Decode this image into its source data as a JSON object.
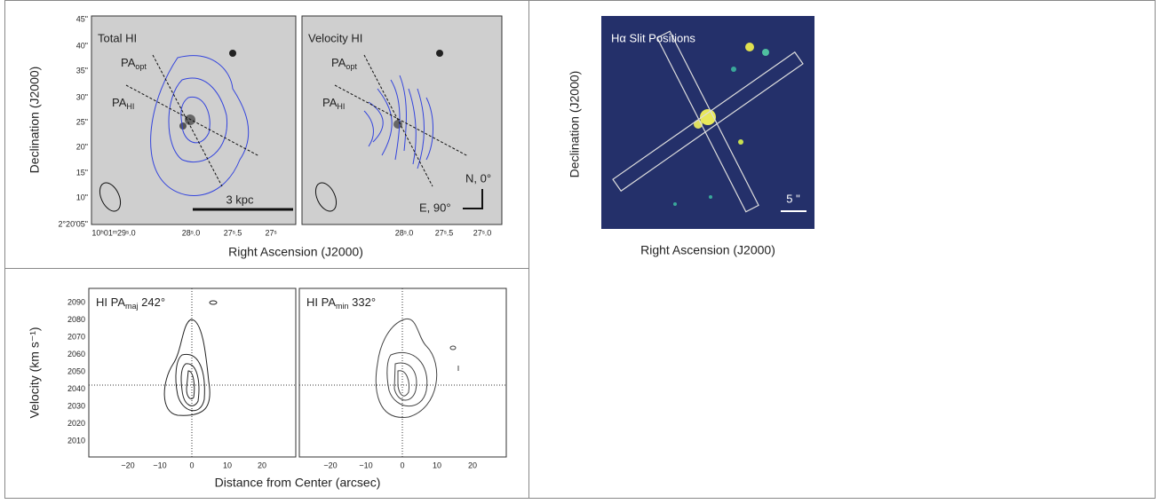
{
  "top_left": {
    "panels": [
      {
        "title": "Total HI",
        "pa_opt": {
          "main": "PA",
          "sub": "opt"
        },
        "pa_hi": {
          "main": "PA",
          "sub": "HI"
        },
        "scale_bar": "3 kpc"
      },
      {
        "title": "Velocity HI",
        "pa_opt": {
          "main": "PA",
          "sub": "opt"
        },
        "pa_hi": {
          "main": "PA",
          "sub": "HI"
        },
        "compass_n": "N, 0°",
        "compass_e": "E, 90°"
      }
    ],
    "y_ticks": [
      "45\"",
      "40\"",
      "35\"",
      "30\"",
      "25\"",
      "20\"",
      "15\"",
      "10\"",
      "2°20'05\""
    ],
    "x_ticks_1": [
      "10ʰ01ᵐ29ˢ.0",
      "28ˢ.0",
      "27ˢ.5",
      "27ˢ"
    ],
    "x_ticks_2": [
      "28ˢ.0",
      "27ˢ.5",
      "27ˢ.0"
    ],
    "x_label": "Right Ascension (J2000)",
    "y_label": "Declination (J2000)"
  },
  "right": {
    "title": "Hα Slit Positions",
    "scale_bar": "5 \"",
    "x_label": "Right Ascension (J2000)",
    "y_label": "Declination (J2000)"
  },
  "bottom": {
    "panels": [
      {
        "title": {
          "main": "HI PA",
          "sub": "maj",
          "rest": " 242°"
        }
      },
      {
        "title": {
          "main": "HI PA",
          "sub": "min",
          "rest": " 332°"
        }
      }
    ],
    "y_ticks": [
      "2090",
      "2080",
      "2070",
      "2060",
      "2050",
      "2040",
      "2030",
      "2020",
      "2010"
    ],
    "x_ticks": [
      "−20",
      "−10",
      "0",
      "10",
      "20"
    ],
    "x_label": "Distance from Center (arcsec)",
    "y_label": "Velocity (km s⁻¹)"
  }
}
